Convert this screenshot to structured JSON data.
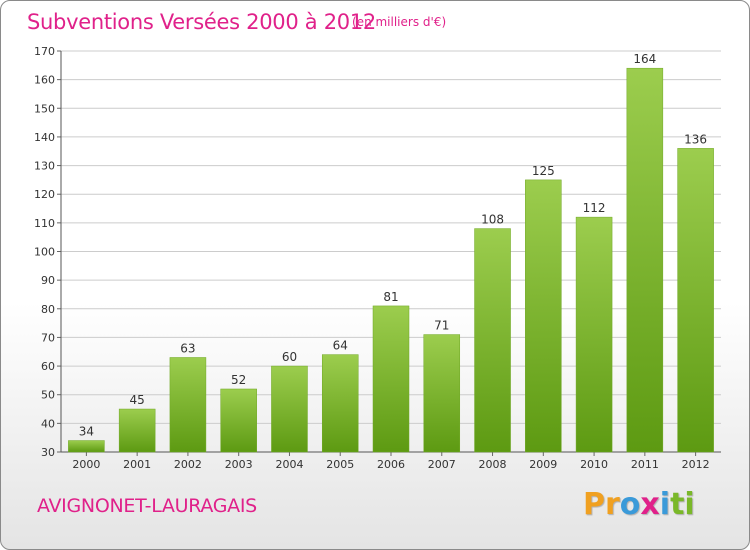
{
  "header": {
    "title": "Subventions Versées 2000 à 2012",
    "subtitle": "(en milliers d'€)"
  },
  "footer": {
    "commune": "AVIGNONET-LAURAGAIS",
    "logo_letters": [
      "P",
      "r",
      "o",
      "x",
      "i",
      "t",
      "i"
    ]
  },
  "colors": {
    "accent": "#e0218a",
    "bar_top": "#9ccd4e",
    "bar_bottom": "#5d9a12",
    "grid": "#cccccc",
    "logo": [
      "#f0a020",
      "#f0a020",
      "#3a9ad9",
      "#e0218a",
      "#3a9ad9",
      "#7ab829",
      "#7ab829"
    ]
  },
  "chart_data": {
    "type": "bar",
    "title": "Subventions Versées 2000 à 2012",
    "xlabel": "",
    "ylabel": "",
    "categories": [
      "2000",
      "2001",
      "2002",
      "2003",
      "2004",
      "2005",
      "2006",
      "2007",
      "2008",
      "2009",
      "2010",
      "2011",
      "2012"
    ],
    "values": [
      34,
      45,
      63,
      52,
      60,
      64,
      81,
      71,
      108,
      125,
      112,
      164,
      136
    ],
    "ylim": [
      30,
      170
    ],
    "yticks": [
      30,
      40,
      50,
      60,
      70,
      80,
      90,
      100,
      110,
      120,
      130,
      140,
      150,
      160,
      170
    ],
    "grid": true,
    "legend": "none"
  }
}
